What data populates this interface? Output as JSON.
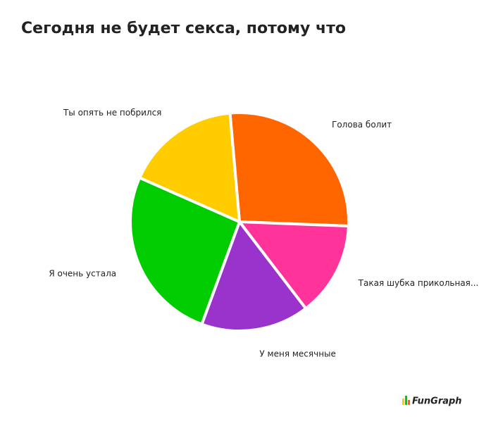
{
  "chart_data": {
    "type": "pie",
    "title": "Сегодня не будет секса, потому что",
    "categories": [
      "Голова болит",
      "Такая шубка прикольная...",
      "У меня месячные",
      "Я очень устала",
      "Ты опять не побрился"
    ],
    "values": [
      27,
      14,
      16,
      26,
      17
    ],
    "colors": [
      "#ff6600",
      "#ff3399",
      "#9933cc",
      "#00cc00",
      "#ffcc00"
    ],
    "logo": "FunGraph"
  }
}
